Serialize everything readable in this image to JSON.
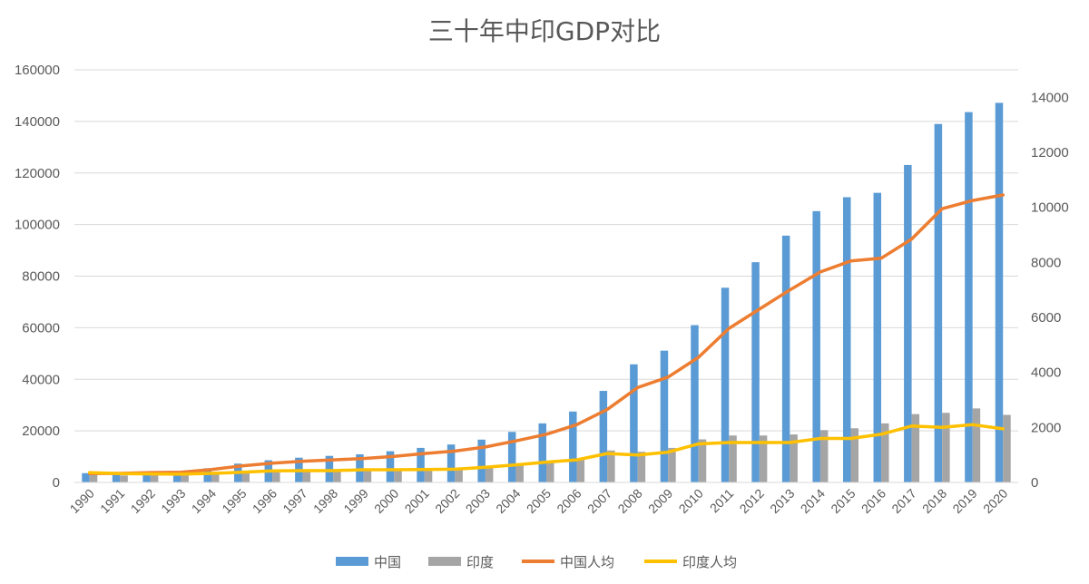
{
  "chart_data": {
    "type": "bar",
    "title": "三十年中印GDP对比",
    "categories": [
      "1990",
      "1991",
      "1992",
      "1993",
      "1994",
      "1995",
      "1996",
      "1997",
      "1998",
      "1999",
      "2000",
      "2001",
      "2002",
      "2003",
      "2004",
      "2005",
      "2006",
      "2007",
      "2008",
      "2009",
      "2010",
      "2011",
      "2012",
      "2013",
      "2014",
      "2015",
      "2016",
      "2017",
      "2018",
      "2019",
      "2020"
    ],
    "series": [
      {
        "name": "中国",
        "type": "bar",
        "axis": "left",
        "color": "#5b9bd5",
        "values": [
          3600,
          3800,
          4200,
          4400,
          5500,
          7300,
          8600,
          9600,
          10300,
          10900,
          12100,
          13400,
          14700,
          16600,
          19600,
          22900,
          27500,
          35500,
          45800,
          51100,
          61000,
          75500,
          85400,
          95700,
          105200,
          110600,
          112300,
          123100,
          139000,
          143600,
          147200
        ]
      },
      {
        "name": "印度",
        "type": "bar",
        "axis": "left",
        "color": "#a5a5a5",
        "values": [
          3200,
          2700,
          2800,
          2800,
          3300,
          3700,
          3900,
          4200,
          4200,
          4600,
          4700,
          4900,
          5100,
          6000,
          7000,
          8200,
          9400,
          12400,
          11900,
          13400,
          16700,
          18200,
          18200,
          18600,
          20300,
          21000,
          22900,
          26500,
          27000,
          28700,
          26200
        ]
      },
      {
        "name": "中国人均",
        "type": "line",
        "axis": "right",
        "color": "#ed7d31",
        "values": [
          320,
          330,
          360,
          370,
          470,
          600,
          700,
          770,
          820,
          870,
          950,
          1050,
          1140,
          1290,
          1510,
          1750,
          2100,
          2650,
          3450,
          3830,
          4550,
          5600,
          6300,
          7000,
          7650,
          8050,
          8150,
          8850,
          9950,
          10250,
          10450
        ]
      },
      {
        "name": "印度人均",
        "type": "line",
        "axis": "right",
        "color": "#ffc000",
        "values": [
          360,
          320,
          310,
          300,
          330,
          370,
          420,
          430,
          430,
          460,
          460,
          470,
          480,
          550,
          640,
          740,
          820,
          1050,
          1000,
          1100,
          1400,
          1450,
          1450,
          1450,
          1600,
          1600,
          1750,
          2050,
          2000,
          2100,
          1950
        ]
      }
    ],
    "ylim_left": [
      0,
      160000
    ],
    "ylim_right": [
      0,
      15000
    ],
    "yticks_left": [
      "0",
      "20000",
      "40000",
      "60000",
      "80000",
      "100000",
      "120000",
      "140000",
      "160000"
    ],
    "yticks_right": [
      "0",
      "2000",
      "4000",
      "6000",
      "8000",
      "10000",
      "12000",
      "14000"
    ],
    "legend": "bottom",
    "grid": true
  }
}
